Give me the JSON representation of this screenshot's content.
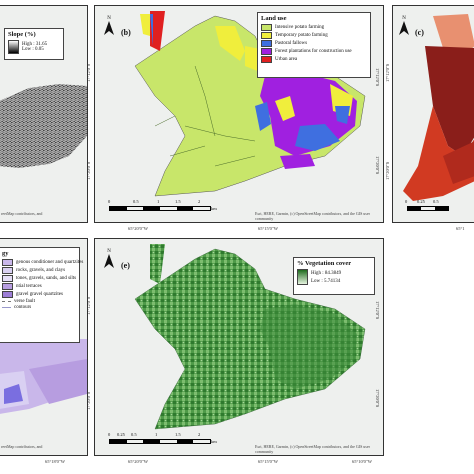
{
  "panel_a": {
    "legend_title": "Slope (%)",
    "high_label": "High : 31.65",
    "low_label": "Low : 0.05",
    "attribution": "reetMap contributors, and"
  },
  "panel_b": {
    "letter": "(b)",
    "north": "N",
    "legend_title": "Land use",
    "classes": [
      {
        "label": "Intensive potato farming",
        "color": "#c8e66a"
      },
      {
        "label": "Temporary potato farming",
        "color": "#f0ee3c"
      },
      {
        "label": "Pastoral fallows",
        "color": "#3f6fe0"
      },
      {
        "label": "Forest plantations for construction use",
        "color": "#a020e0"
      },
      {
        "label": "Urban area",
        "color": "#e02020"
      }
    ],
    "lat_top": "17°12'0\"S",
    "lat_bottom": "17°20'0\"S",
    "lon_left": "65°20'0\"W",
    "lon_mid": "65°15'0\"W",
    "attribution": "Esri, HERE, Garmin, (c) OpenStreetMap contributors, and the GIS user community",
    "scale_labels": [
      "0",
      "0.5",
      "1",
      "1.5",
      "2",
      "km"
    ]
  },
  "panel_c": {
    "letter": "(c)",
    "north": "N",
    "lat_top": "17°12'0\"S",
    "lat_bottom": "17°20'0\"S",
    "scale_labels": [
      "0",
      "0.25",
      "0.5"
    ],
    "lon_right": "65°1"
  },
  "panel_d": {
    "legend_title": "gy",
    "items": [
      "genous conditioner and quartzites",
      "rocks, gravels, and clays",
      "tones, gravels, sands, and silts",
      "ntial terraces",
      "gravel gravel quartzites",
      "verse fault",
      "contours"
    ],
    "colors": [
      "#c9b7ea",
      "#d9d0f2",
      "#e6dff8",
      "#b79de0",
      "#9d7ed6",
      "#777777",
      "#9999cc"
    ],
    "attribution": "reetMap contributors, and",
    "lon_label": "65°18'0\"W"
  },
  "panel_e": {
    "letter": "(e)",
    "north": "N",
    "legend_title": "% Vegetation cover",
    "high_label": "High : 84.3849",
    "low_label": "Low : 5.74134",
    "lat_top": "17°12'0\"S",
    "lat_bottom": "17°20'0\"S",
    "lon_left": "65°20'0\"W",
    "lon_mid": "65°15'0\"W",
    "lon_right": "65°10'0\"W",
    "attribution": "Esri, HERE, Garmin, (c) OpenStreetMap contributors, and the GIS user community",
    "scale_labels": [
      "0",
      "0.25",
      "0.5",
      "1",
      "1.5",
      "2",
      "km"
    ]
  }
}
